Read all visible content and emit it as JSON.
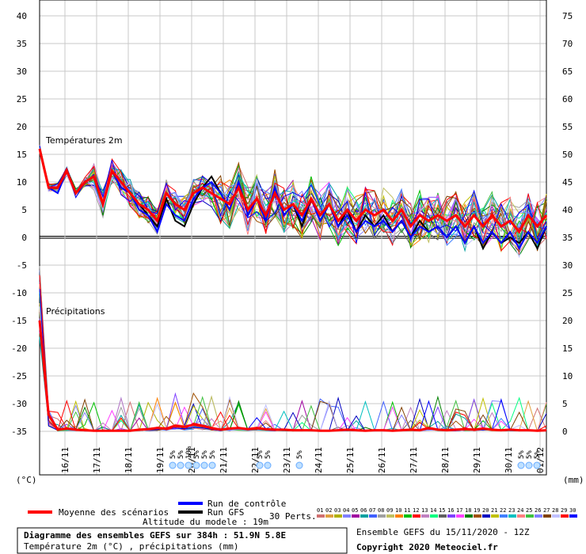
{
  "chart_data": {
    "type": "line",
    "x_dates": [
      "16/11",
      "17/11",
      "18/11",
      "19/11",
      "20/11",
      "21/11",
      "22/11",
      "23/11",
      "24/11",
      "25/11",
      "26/11",
      "27/11",
      "28/11",
      "29/11",
      "30/11",
      "01/12"
    ],
    "left_axis": {
      "ticks": [
        40,
        35,
        30,
        25,
        20,
        15,
        10,
        5,
        0,
        -5,
        -10,
        -15,
        -20,
        -25,
        -30,
        -35
      ],
      "unit": "(°C)"
    },
    "right_axis": {
      "ticks": [
        75,
        70,
        65,
        60,
        55,
        50,
        45,
        40,
        35,
        30,
        25,
        20,
        15,
        10,
        5,
        0
      ],
      "unit": "(mm)"
    },
    "temp_label": "Températures 2m",
    "precip_label": "Précipitations",
    "snow_markers": [
      {
        "date": "20/11",
        "text": "5%"
      },
      {
        "date": "20/11",
        "text": "5%"
      },
      {
        "date": "20/11",
        "text": "10%"
      },
      {
        "date": "21/11",
        "text": "5%"
      },
      {
        "date": "21/11",
        "text": "5%"
      },
      {
        "date": "21/11",
        "text": "5%"
      },
      {
        "date": "22/11",
        "text": "5%"
      },
      {
        "date": "22/11",
        "text": "5%"
      },
      {
        "date": "23/11",
        "text": "5%"
      },
      {
        "date": "30/11",
        "text": "5%"
      },
      {
        "date": "01/12",
        "text": "5%"
      },
      {
        "date": "01/12",
        "text": "5%"
      }
    ],
    "mean_temperature": {
      "name": "Moyenne des scénarios",
      "color": "#ff0000",
      "values": [
        16,
        9,
        9,
        12,
        8,
        10,
        11,
        6,
        12,
        10,
        8,
        6,
        5,
        3,
        8,
        6,
        5,
        8,
        9,
        8,
        7,
        6,
        9,
        5,
        7,
        4,
        8,
        5,
        6,
        4,
        7,
        4,
        6,
        3,
        5,
        3,
        5,
        4,
        5,
        3,
        5,
        2,
        4,
        3,
        4,
        3,
        4,
        2,
        4,
        2,
        4,
        2,
        3,
        1,
        4,
        2,
        4
      ]
    },
    "mean_precip": {
      "values": [
        20,
        3,
        0.3,
        0.5,
        0.3,
        0.2,
        0.1,
        0.1,
        0.1,
        0.1,
        0.1,
        0.3,
        0.4,
        0.6,
        0.5,
        1,
        0.8,
        1.2,
        1,
        0.6,
        0.3,
        0.5,
        0.6,
        0.4,
        0.6,
        0.4,
        0.3,
        0.3,
        0.2,
        0.2,
        0.2,
        0.1,
        0.1,
        0.2,
        0.3,
        0.2,
        0.1,
        0.2,
        0.2,
        0.1,
        0.2,
        0.3,
        0.2,
        0.6,
        0.3,
        0.2,
        0.3,
        0.4,
        0.3,
        0.5,
        0.3,
        0.2,
        0.3,
        0.2,
        0.2,
        0.1,
        0.2
      ]
    },
    "control_run": {
      "name": "Run de contrôle",
      "color": "#0000ff",
      "values": [
        16,
        9,
        8,
        12,
        8,
        10,
        11,
        6,
        12,
        9,
        8,
        5,
        4,
        1,
        6,
        4,
        3,
        7,
        9,
        10,
        8,
        5,
        10,
        4,
        7,
        3,
        9,
        4,
        6,
        3,
        7,
        3,
        6,
        2,
        4,
        1,
        3,
        2,
        3,
        1,
        3,
        0,
        2,
        1,
        2,
        0,
        2,
        -1,
        2,
        -1,
        1,
        -1,
        1,
        -2,
        1,
        -1,
        2
      ]
    },
    "gfs_run": {
      "name": "Run GFS",
      "color": "#000000",
      "values": [
        16,
        9,
        9,
        12,
        8,
        10,
        11,
        6,
        12,
        10,
        8,
        6,
        4,
        2,
        7,
        3,
        2,
        6,
        9,
        11,
        8,
        5,
        10,
        4,
        7,
        3,
        9,
        4,
        6,
        2,
        7,
        3,
        6,
        2,
        5,
        1,
        4,
        2,
        4,
        1,
        3,
        0,
        3,
        1,
        2,
        0,
        2,
        -1,
        2,
        -2,
        1,
        -1,
        0,
        -1,
        1,
        -2,
        2
      ]
    },
    "members_label": "30 Perts.",
    "member_ids": [
      "01",
      "02",
      "03",
      "04",
      "05",
      "06",
      "07",
      "08",
      "09",
      "10",
      "11",
      "12",
      "13",
      "14",
      "15",
      "16",
      "17",
      "18",
      "19",
      "20",
      "21",
      "22",
      "23",
      "24",
      "25",
      "26",
      "27",
      "28",
      "29",
      "30"
    ],
    "member_colors": [
      "#d07070",
      "#e0a040",
      "#b0b000",
      "#8080ff",
      "#a000a0",
      "#00a0a0",
      "#4060ff",
      "#a0a0a0",
      "#c0c060",
      "#ff8000",
      "#00c000",
      "#ff0000",
      "#c080c0",
      "#00ff80",
      "#606060",
      "#8040ff",
      "#ff40ff",
      "#008000",
      "#a05000",
      "#0000c0",
      "#c0c000",
      "#4080ff",
      "#00c0c0",
      "#ff8080",
      "#40c040",
      "#8080ff",
      "#804000",
      "#c0c0ff",
      "#ff0000",
      "#0000ff"
    ]
  },
  "info": {
    "title": "Diagramme des ensembles GEFS sur 384h : 51.9N 5.8E",
    "subtitle": "Température 2m (°C) , précipitations (mm)",
    "altitude": "Altitude du modele : 19m",
    "run": "Ensemble GEFS du 15/11/2020 - 12Z",
    "copyright": "Copyright 2020 Meteociel.fr"
  },
  "colors": {
    "mean": "#ff0000",
    "control": "#0000ff",
    "gfs": "#000000",
    "snow": "#66aaff"
  }
}
